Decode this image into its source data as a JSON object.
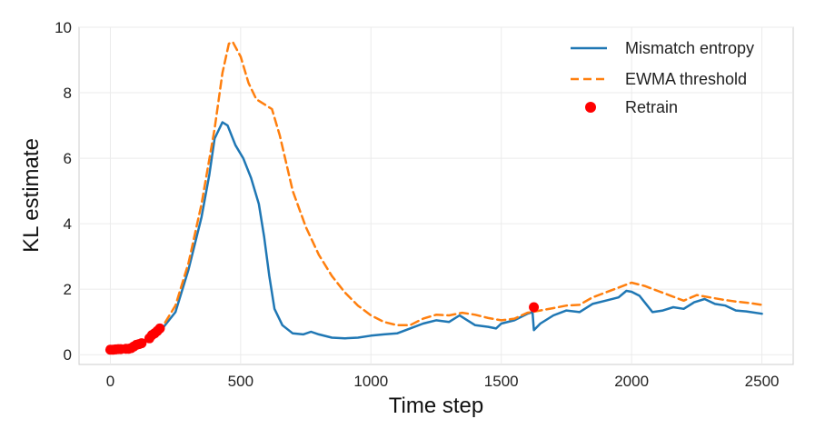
{
  "chart_data": {
    "type": "line",
    "title": "",
    "xlabel": "Time step",
    "ylabel": "KL estimate",
    "xlim": [
      -120,
      2620
    ],
    "ylim": [
      -0.3,
      10
    ],
    "xticks": [
      0,
      500,
      1000,
      1500,
      2000,
      2500
    ],
    "xtick_labels": [
      "0",
      "500",
      "1000",
      "1500",
      "2000",
      "2500"
    ],
    "yticks": [
      0,
      2,
      4,
      6,
      8,
      10
    ],
    "ytick_labels": [
      "0",
      "2",
      "4",
      "6",
      "8",
      "10"
    ],
    "grid": true,
    "legend_position": "top-right",
    "series": [
      {
        "name": "Mismatch entropy",
        "style": "solid",
        "color": "#1f77b4",
        "points": [
          [
            0,
            0.15
          ],
          [
            50,
            0.18
          ],
          [
            100,
            0.3
          ],
          [
            150,
            0.5
          ],
          [
            200,
            0.8
          ],
          [
            250,
            1.3
          ],
          [
            300,
            2.6
          ],
          [
            350,
            4.2
          ],
          [
            380,
            5.5
          ],
          [
            400,
            6.6
          ],
          [
            430,
            7.1
          ],
          [
            450,
            7.0
          ],
          [
            480,
            6.4
          ],
          [
            510,
            6.0
          ],
          [
            540,
            5.4
          ],
          [
            570,
            4.6
          ],
          [
            590,
            3.6
          ],
          [
            610,
            2.4
          ],
          [
            630,
            1.4
          ],
          [
            660,
            0.9
          ],
          [
            700,
            0.65
          ],
          [
            740,
            0.62
          ],
          [
            770,
            0.7
          ],
          [
            800,
            0.62
          ],
          [
            850,
            0.52
          ],
          [
            900,
            0.5
          ],
          [
            950,
            0.52
          ],
          [
            1000,
            0.58
          ],
          [
            1050,
            0.62
          ],
          [
            1100,
            0.65
          ],
          [
            1150,
            0.8
          ],
          [
            1200,
            0.95
          ],
          [
            1250,
            1.05
          ],
          [
            1300,
            1.0
          ],
          [
            1340,
            1.2
          ],
          [
            1370,
            1.05
          ],
          [
            1400,
            0.9
          ],
          [
            1450,
            0.85
          ],
          [
            1480,
            0.8
          ],
          [
            1500,
            0.95
          ],
          [
            1550,
            1.05
          ],
          [
            1600,
            1.25
          ],
          [
            1620,
            1.3
          ],
          [
            1625,
            0.75
          ],
          [
            1650,
            0.95
          ],
          [
            1700,
            1.2
          ],
          [
            1750,
            1.35
          ],
          [
            1800,
            1.3
          ],
          [
            1850,
            1.55
          ],
          [
            1900,
            1.65
          ],
          [
            1950,
            1.75
          ],
          [
            1980,
            1.95
          ],
          [
            2000,
            1.92
          ],
          [
            2030,
            1.8
          ],
          [
            2060,
            1.5
          ],
          [
            2080,
            1.3
          ],
          [
            2120,
            1.35
          ],
          [
            2160,
            1.45
          ],
          [
            2200,
            1.4
          ],
          [
            2240,
            1.6
          ],
          [
            2280,
            1.7
          ],
          [
            2320,
            1.55
          ],
          [
            2360,
            1.5
          ],
          [
            2400,
            1.35
          ],
          [
            2440,
            1.32
          ],
          [
            2500,
            1.25
          ]
        ]
      },
      {
        "name": "EWMA threshold",
        "style": "dashed",
        "color": "#ff7f0e",
        "points": [
          [
            0,
            0.15
          ],
          [
            50,
            0.2
          ],
          [
            100,
            0.3
          ],
          [
            150,
            0.5
          ],
          [
            200,
            0.85
          ],
          [
            250,
            1.5
          ],
          [
            300,
            2.8
          ],
          [
            350,
            4.6
          ],
          [
            400,
            6.9
          ],
          [
            430,
            8.6
          ],
          [
            455,
            9.5
          ],
          [
            470,
            9.55
          ],
          [
            500,
            9.1
          ],
          [
            530,
            8.3
          ],
          [
            560,
            7.8
          ],
          [
            590,
            7.65
          ],
          [
            620,
            7.5
          ],
          [
            650,
            6.7
          ],
          [
            700,
            5.0
          ],
          [
            750,
            3.9
          ],
          [
            800,
            3.05
          ],
          [
            850,
            2.4
          ],
          [
            900,
            1.9
          ],
          [
            950,
            1.5
          ],
          [
            1000,
            1.2
          ],
          [
            1050,
            1.0
          ],
          [
            1100,
            0.9
          ],
          [
            1150,
            0.9
          ],
          [
            1200,
            1.1
          ],
          [
            1250,
            1.22
          ],
          [
            1300,
            1.2
          ],
          [
            1350,
            1.28
          ],
          [
            1400,
            1.22
          ],
          [
            1450,
            1.12
          ],
          [
            1500,
            1.05
          ],
          [
            1550,
            1.1
          ],
          [
            1600,
            1.28
          ],
          [
            1650,
            1.35
          ],
          [
            1700,
            1.42
          ],
          [
            1750,
            1.5
          ],
          [
            1800,
            1.52
          ],
          [
            1850,
            1.75
          ],
          [
            1900,
            1.9
          ],
          [
            1950,
            2.05
          ],
          [
            2000,
            2.2
          ],
          [
            2050,
            2.1
          ],
          [
            2100,
            1.95
          ],
          [
            2150,
            1.8
          ],
          [
            2200,
            1.65
          ],
          [
            2250,
            1.82
          ],
          [
            2300,
            1.75
          ],
          [
            2350,
            1.68
          ],
          [
            2400,
            1.62
          ],
          [
            2450,
            1.58
          ],
          [
            2500,
            1.52
          ]
        ]
      }
    ],
    "retrain": {
      "name": "Retrain",
      "color": "#ff0000",
      "points": [
        [
          0,
          0.15
        ],
        [
          10,
          0.15
        ],
        [
          20,
          0.16
        ],
        [
          30,
          0.17
        ],
        [
          40,
          0.17
        ],
        [
          60,
          0.18
        ],
        [
          70,
          0.18
        ],
        [
          80,
          0.2
        ],
        [
          90,
          0.25
        ],
        [
          100,
          0.3
        ],
        [
          110,
          0.32
        ],
        [
          120,
          0.35
        ],
        [
          150,
          0.5
        ],
        [
          160,
          0.6
        ],
        [
          170,
          0.65
        ],
        [
          180,
          0.72
        ],
        [
          190,
          0.8
        ],
        [
          1625,
          1.45
        ]
      ]
    }
  }
}
